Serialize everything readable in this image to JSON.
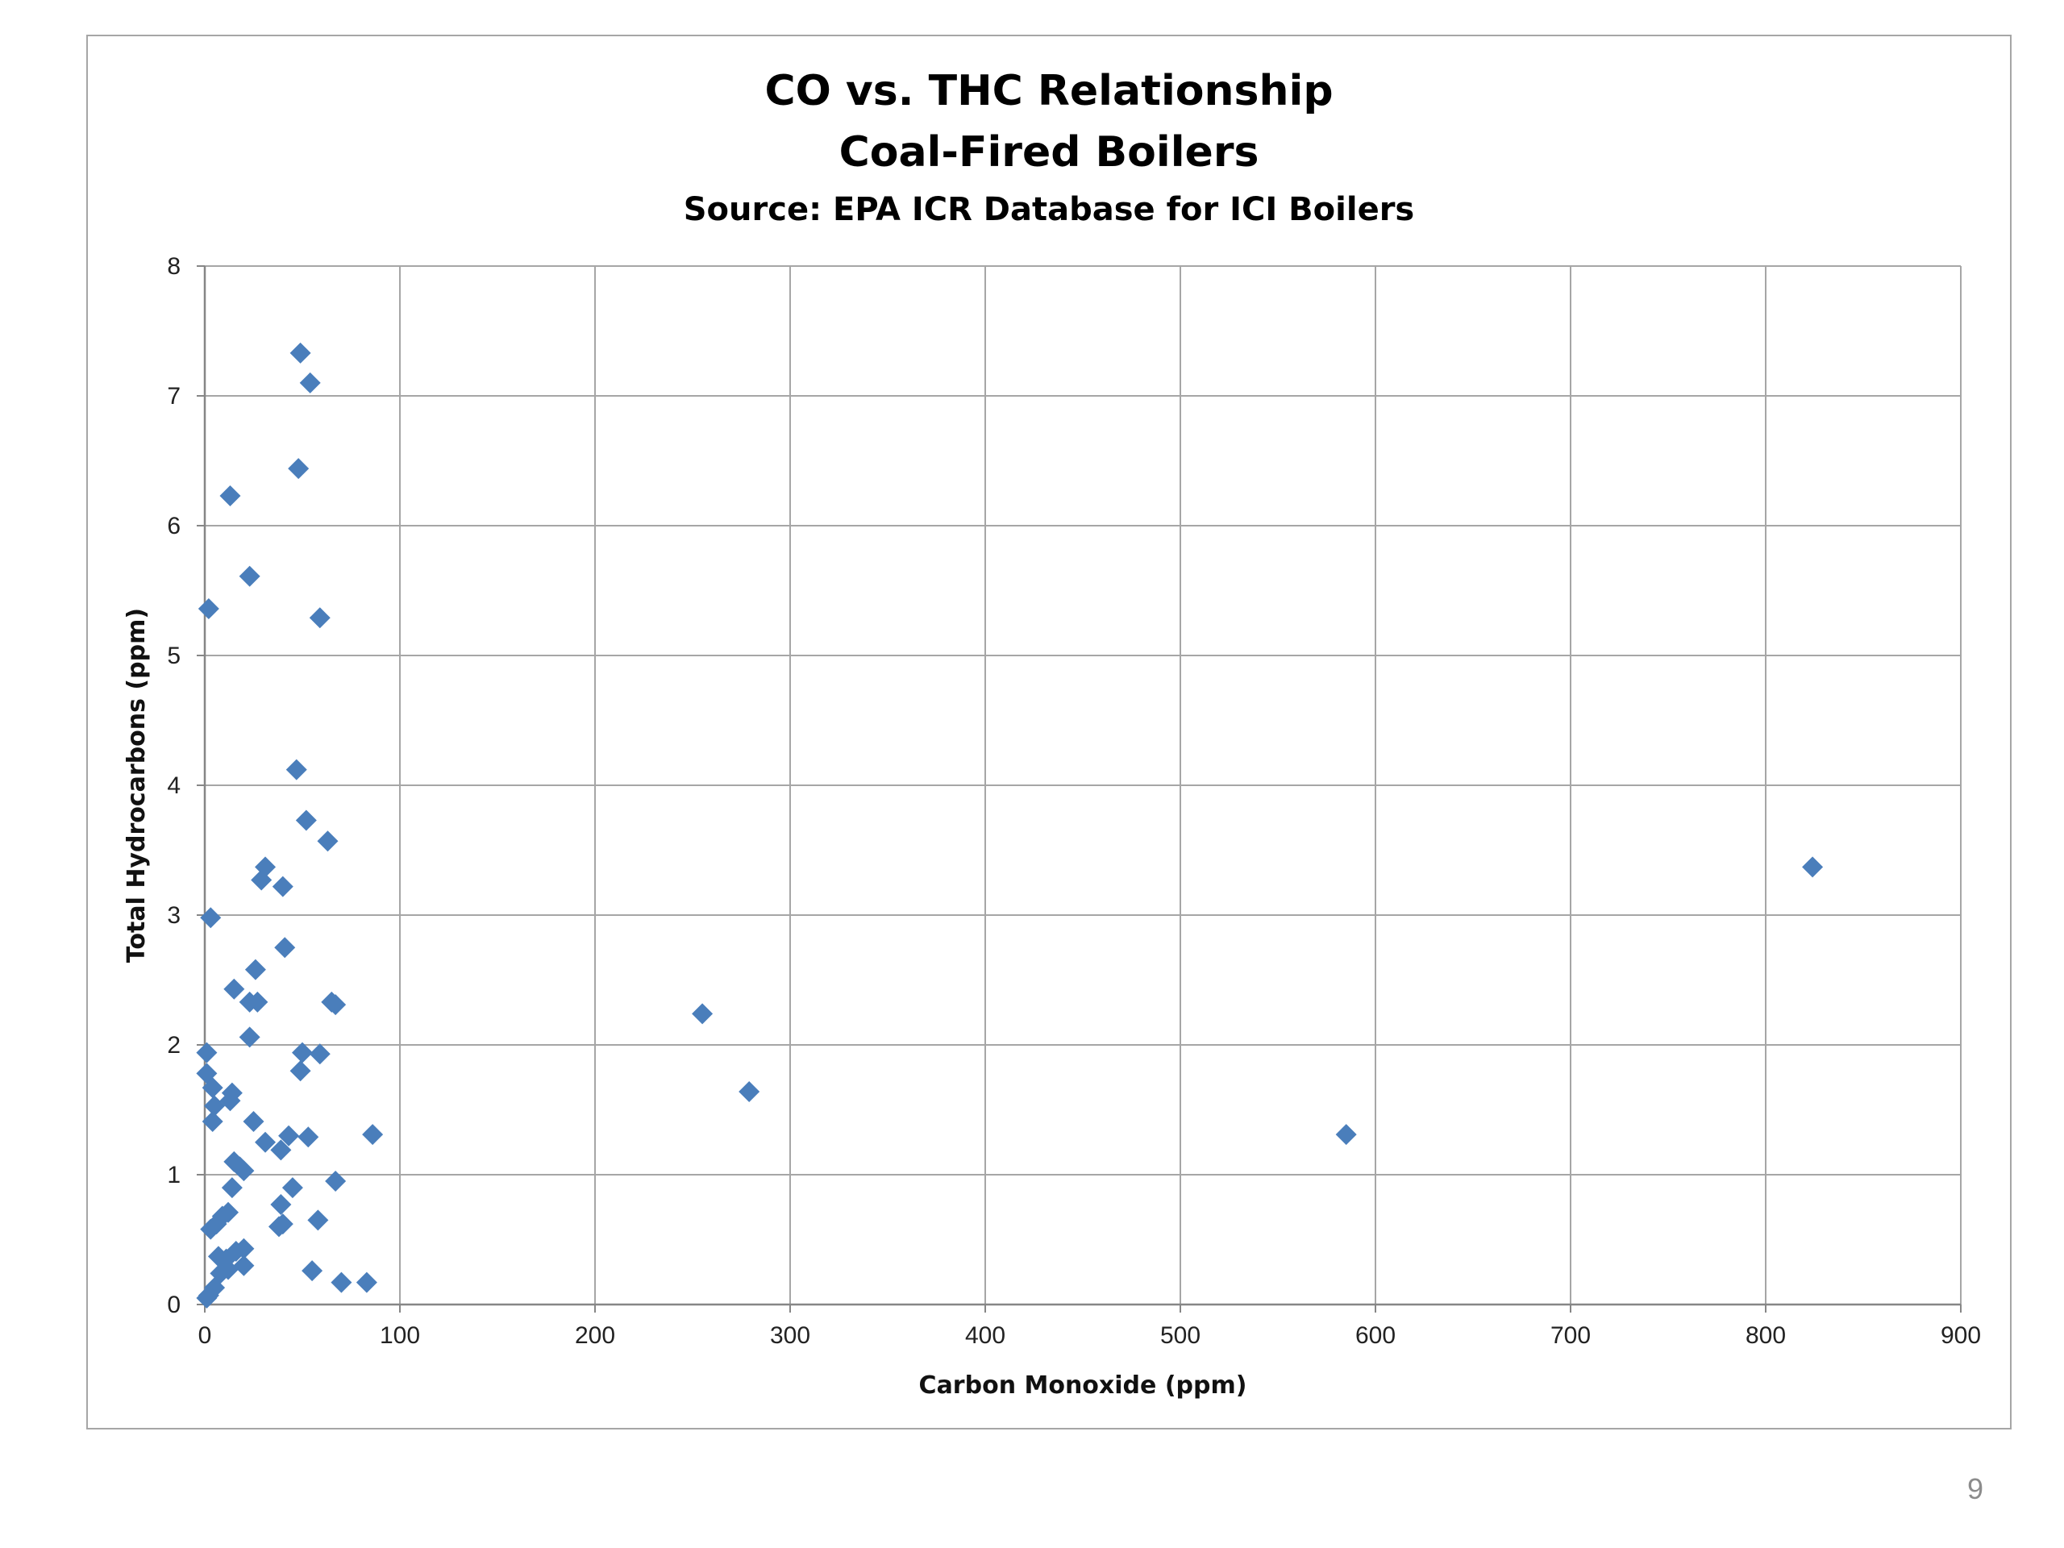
{
  "page_number": "9",
  "chart_data": {
    "type": "scatter",
    "title_lines": [
      "CO vs. THC Relationship",
      "Coal-Fired Boilers"
    ],
    "subtitle": "Source:  EPA ICR Database for ICI Boilers",
    "xlabel": "Carbon Monoxide (ppm)",
    "ylabel": "Total Hydrocarbons (ppm)",
    "xlim": [
      0,
      900
    ],
    "ylim": [
      0,
      8
    ],
    "xticks": [
      0,
      100,
      200,
      300,
      400,
      500,
      600,
      700,
      800,
      900
    ],
    "yticks": [
      0,
      1,
      2,
      3,
      4,
      5,
      6,
      7,
      8
    ],
    "grid": true,
    "marker": "diamond",
    "marker_color": "#4a7ebb",
    "points": [
      [
        49,
        7.33
      ],
      [
        54,
        7.1
      ],
      [
        48,
        6.44
      ],
      [
        13,
        6.23
      ],
      [
        23,
        5.61
      ],
      [
        2,
        5.36
      ],
      [
        59,
        5.29
      ],
      [
        47,
        4.12
      ],
      [
        52,
        3.73
      ],
      [
        63,
        3.57
      ],
      [
        31,
        3.37
      ],
      [
        29,
        3.27
      ],
      [
        40,
        3.22
      ],
      [
        3,
        2.98
      ],
      [
        41,
        2.75
      ],
      [
        26,
        2.58
      ],
      [
        15,
        2.43
      ],
      [
        23,
        2.33
      ],
      [
        27,
        2.33
      ],
      [
        65,
        2.33
      ],
      [
        67,
        2.31
      ],
      [
        23,
        2.06
      ],
      [
        1,
        1.94
      ],
      [
        50,
        1.94
      ],
      [
        59,
        1.93
      ],
      [
        1,
        1.78
      ],
      [
        49,
        1.8
      ],
      [
        4,
        1.67
      ],
      [
        14,
        1.63
      ],
      [
        13,
        1.57
      ],
      [
        5,
        1.53
      ],
      [
        4,
        1.41
      ],
      [
        25,
        1.41
      ],
      [
        86,
        1.31
      ],
      [
        43,
        1.3
      ],
      [
        53,
        1.29
      ],
      [
        31,
        1.25
      ],
      [
        39,
        1.19
      ],
      [
        15,
        1.1
      ],
      [
        18,
        1.06
      ],
      [
        20,
        1.03
      ],
      [
        67,
        0.95
      ],
      [
        14,
        0.9
      ],
      [
        45,
        0.9
      ],
      [
        39,
        0.77
      ],
      [
        12,
        0.71
      ],
      [
        9,
        0.68
      ],
      [
        58,
        0.65
      ],
      [
        6,
        0.62
      ],
      [
        3,
        0.58
      ],
      [
        38,
        0.6
      ],
      [
        40,
        0.62
      ],
      [
        20,
        0.43
      ],
      [
        16,
        0.41
      ],
      [
        7,
        0.37
      ],
      [
        11,
        0.35
      ],
      [
        20,
        0.3
      ],
      [
        12,
        0.27
      ],
      [
        8,
        0.24
      ],
      [
        55,
        0.26
      ],
      [
        70,
        0.17
      ],
      [
        83,
        0.17
      ],
      [
        5,
        0.13
      ],
      [
        2,
        0.07
      ],
      [
        1,
        0.05
      ],
      [
        255,
        2.24
      ],
      [
        279,
        1.64
      ],
      [
        585,
        1.31
      ],
      [
        824,
        3.37
      ]
    ]
  }
}
